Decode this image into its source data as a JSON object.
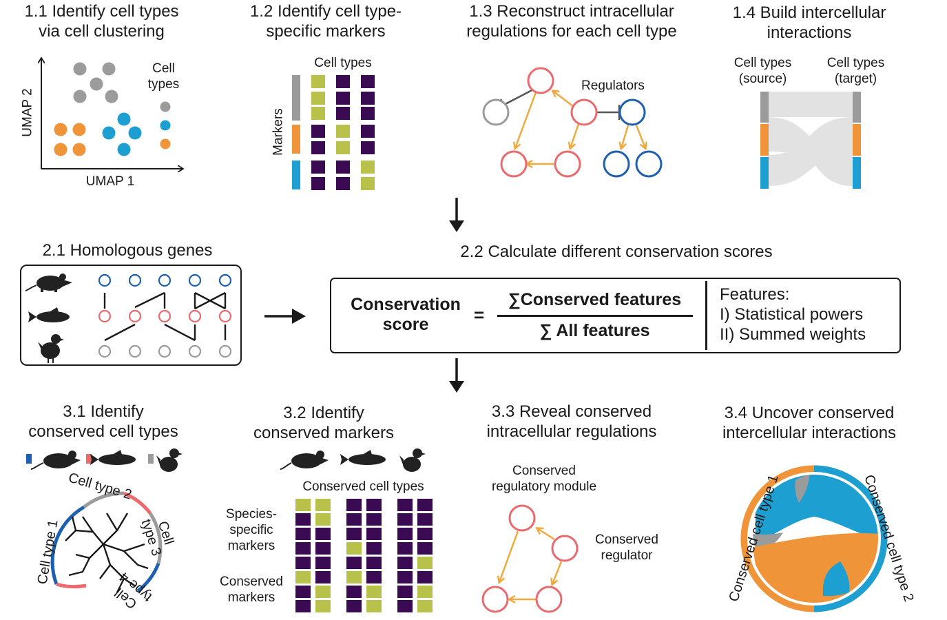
{
  "titles": {
    "t11": "1.1 Identify cell types\nvia cell clustering",
    "t12": "1.2 Identify cell type-\nspecific markers",
    "t13": "1.3 Reconstruct intracellular\nregulations for each cell type",
    "t14": "1.4 Build intercellular\ninteractions",
    "t21": "2.1 Homologous genes",
    "t22": "2.2 Calculate different conservation scores",
    "t31": "3.1 Identify\nconserved cell types",
    "t32": "3.2 Identify\nconserved markers",
    "t33": "3.3 Reveal conserved\nintracellular regulations",
    "t34": "3.4 Uncover conserved\nintercellular interactions"
  },
  "panel11": {
    "xlabel": "UMAP 1",
    "ylabel": "UMAP 2",
    "legend": "Cell\ntypes"
  },
  "panel12": {
    "col_label": "Cell types",
    "row_label": "Markers"
  },
  "panel13": {
    "regulators_label": "Regulators"
  },
  "panel14": {
    "source_label": "Cell types\n(source)",
    "target_label": "Cell types\n(target)"
  },
  "panel22": {
    "lhs": "Conservation\nscore",
    "eq": "=",
    "numerator": "∑Conserved features",
    "denominator": "∑ All features",
    "features_title": "Features:",
    "feature1": "I) Statistical powers",
    "feature2": "II) Summed weights"
  },
  "panel31": {
    "ct1": "Cell type 1",
    "ct2": "Cell type 2",
    "ct3": "Cell\ntype 3",
    "ct4": "Cell\ntype 4"
  },
  "panel32": {
    "col_label": "Conserved cell types",
    "species_specific": "Species-\nspecific\nmarkers",
    "conserved": "Conserved\nmarkers"
  },
  "panel33": {
    "module_label": "Conserved\nregulatory module",
    "regulator_label": "Conserved\nregulator"
  },
  "panel34": {
    "ct1": "Conserved cell type 1",
    "ct2": "Conserved cell type 2"
  },
  "colors": {
    "gray": "#9b9b9b",
    "orange": "#f0943a",
    "blue": "#1d9fd1",
    "dark_purple": "#3a0b52",
    "olive": "#b8c24a",
    "pink_red": "#ea6a6e",
    "dark_blue": "#1e60b0",
    "orange_arrow": "#f1a93e"
  }
}
